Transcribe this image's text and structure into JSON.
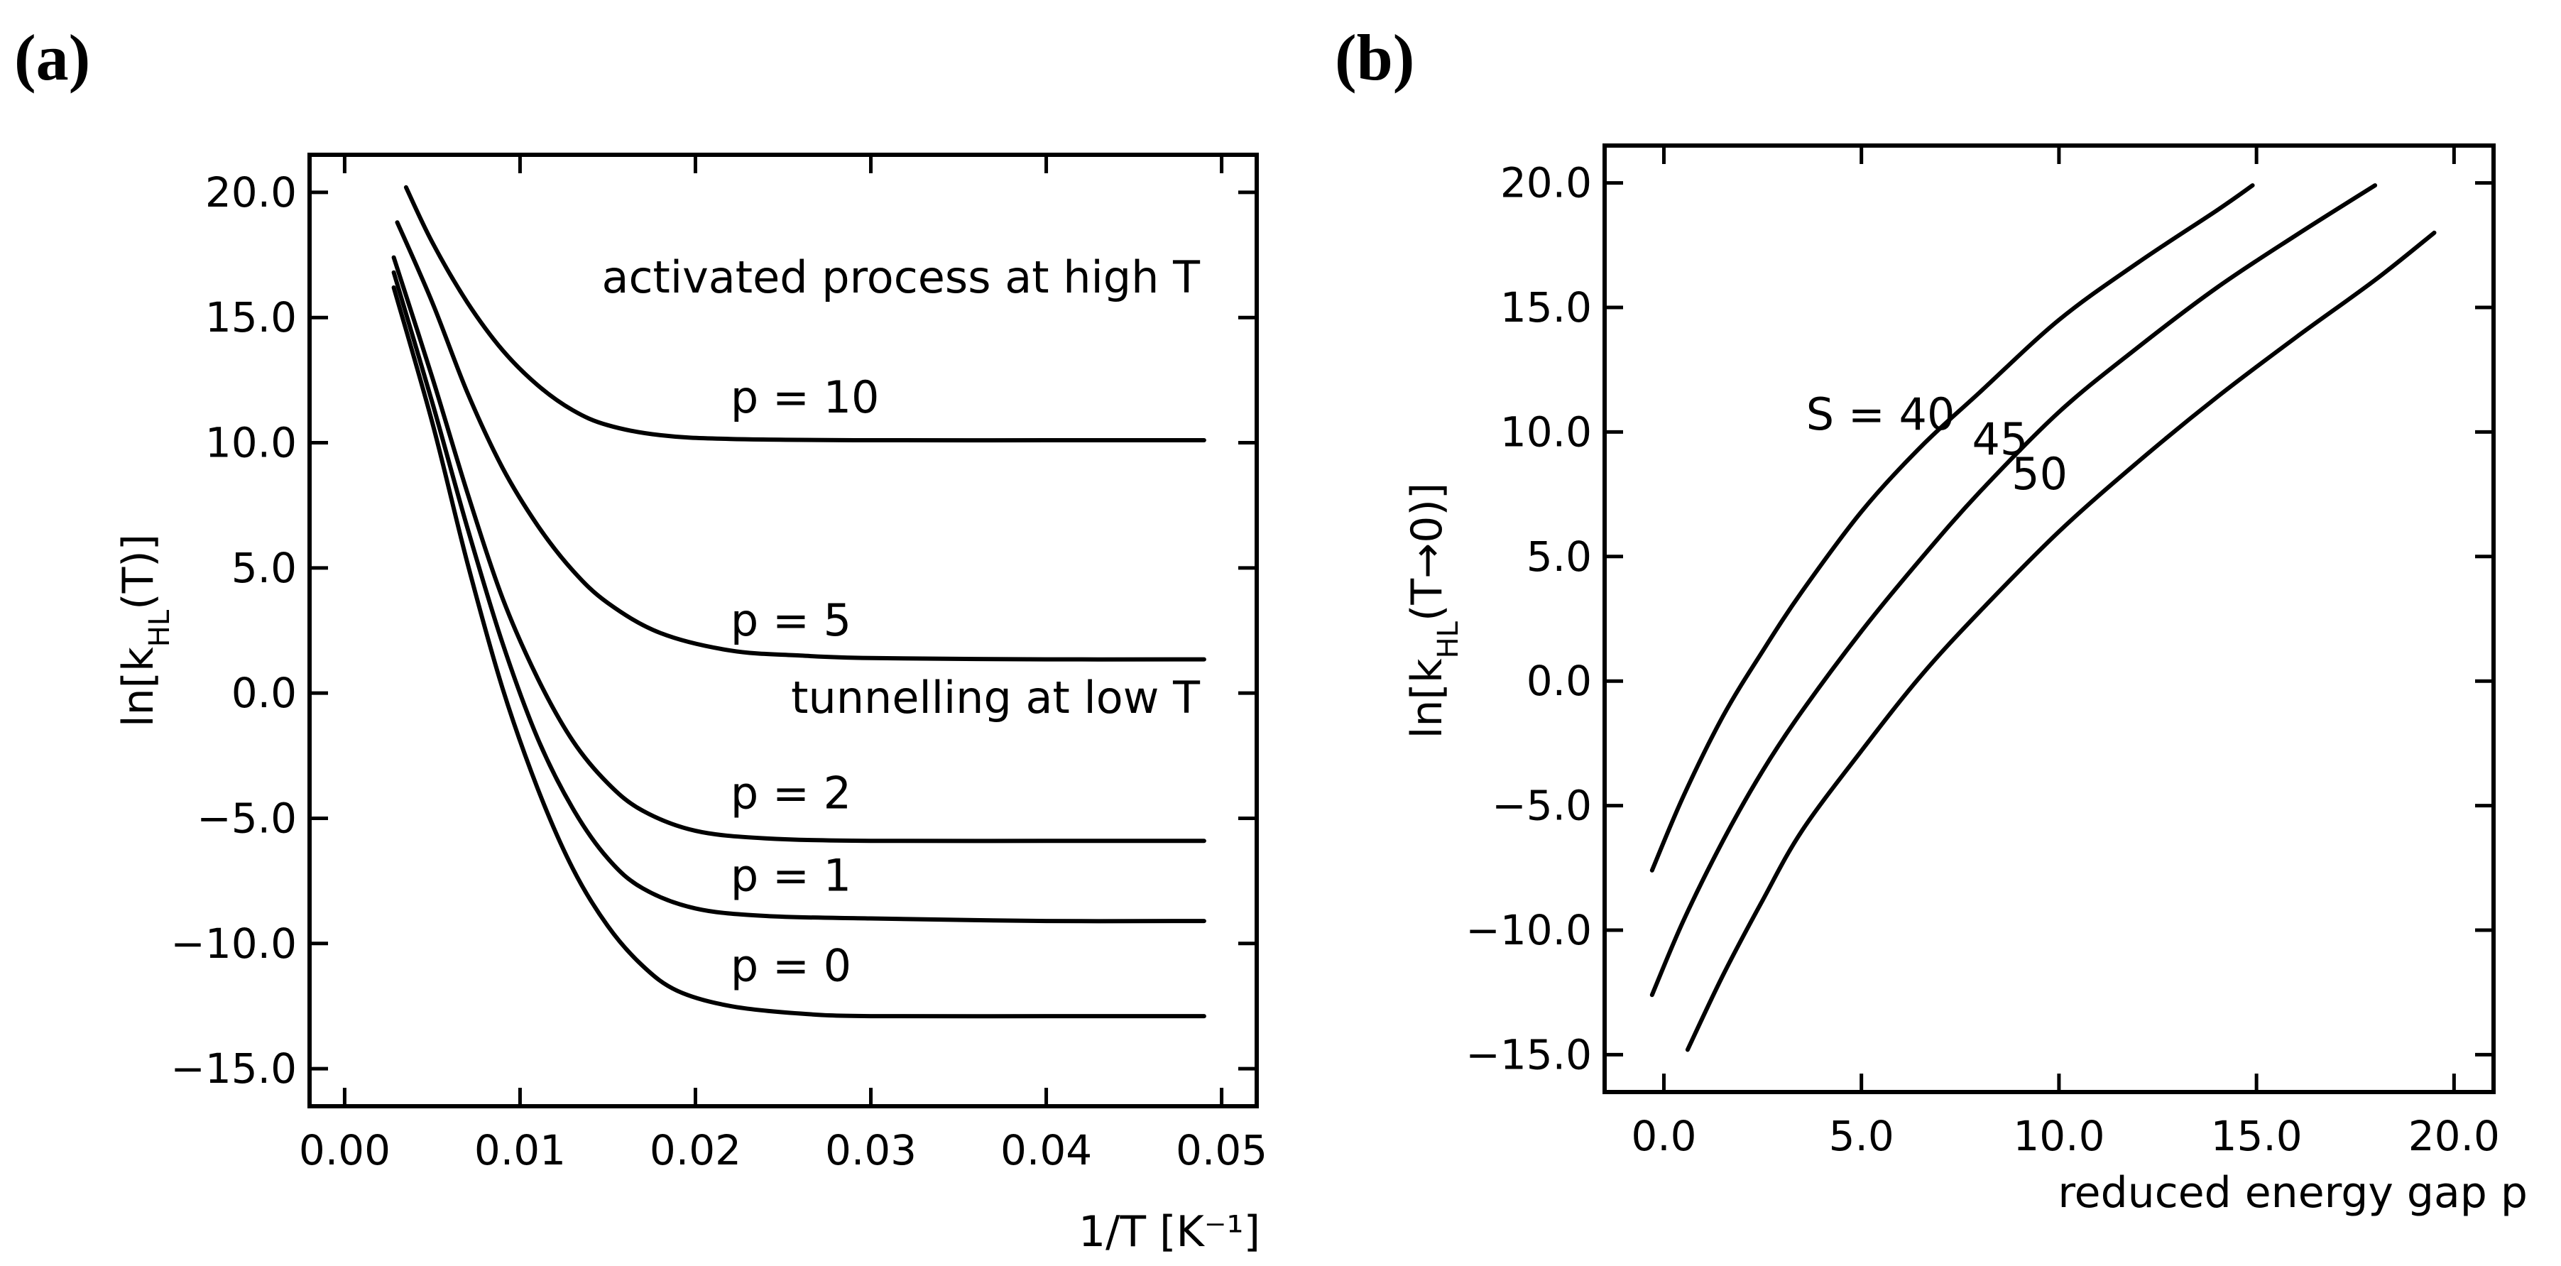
{
  "chart_data": [
    {
      "type": "line",
      "panel_label": "(a)",
      "xlabel": "1/T  [K⁻¹]",
      "ylabel": "ln[k_HL(T)]",
      "ylabel_main": "ln[k",
      "ylabel_sub": "HL",
      "ylabel_tail": "(T)]",
      "xlim": [
        -0.002,
        0.052
      ],
      "ylim": [
        -16.5,
        21.5
      ],
      "xticks": [
        0.0,
        0.01,
        0.02,
        0.03,
        0.04,
        0.05
      ],
      "xtick_labels": [
        "0.00",
        "0.01",
        "0.02",
        "0.03",
        "0.04",
        "0.05"
      ],
      "yticks": [
        -15,
        -10,
        -5,
        0,
        5,
        10,
        15,
        20
      ],
      "ytick_labels": [
        "−15.0",
        "−10.0",
        "−5.0",
        "0.0",
        "5.0",
        "10.0",
        "15.0",
        "20.0"
      ],
      "annotations": [
        "activated process at high T",
        "tunnelling at low T"
      ],
      "series": [
        {
          "name": "p = 10",
          "label": "p = 10",
          "label_at": [
            0.022,
            11.2
          ],
          "x": [
            0.0035,
            0.005,
            0.007,
            0.009,
            0.011,
            0.013,
            0.015,
            0.018,
            0.022,
            0.03,
            0.04,
            0.049
          ],
          "y": [
            20.2,
            18.0,
            15.6,
            13.7,
            12.3,
            11.3,
            10.7,
            10.3,
            10.15,
            10.1,
            10.1,
            10.1
          ]
        },
        {
          "name": "p = 5",
          "label": "p = 5",
          "label_at": [
            0.022,
            2.3
          ],
          "x": [
            0.003,
            0.005,
            0.007,
            0.009,
            0.011,
            0.013,
            0.015,
            0.018,
            0.022,
            0.026,
            0.03,
            0.04,
            0.049
          ],
          "y": [
            18.8,
            15.6,
            12.0,
            9.0,
            6.7,
            4.9,
            3.6,
            2.4,
            1.7,
            1.5,
            1.4,
            1.35,
            1.35
          ]
        },
        {
          "name": "p = 2",
          "label": "p = 2",
          "label_at": [
            0.022,
            -4.6
          ],
          "x": [
            0.0028,
            0.005,
            0.007,
            0.009,
            0.011,
            0.013,
            0.015,
            0.017,
            0.02,
            0.024,
            0.03,
            0.04,
            0.049
          ],
          "y": [
            17.4,
            12.6,
            8.0,
            3.8,
            0.6,
            -1.9,
            -3.6,
            -4.7,
            -5.5,
            -5.8,
            -5.9,
            -5.9,
            -5.9
          ]
        },
        {
          "name": "p = 1",
          "label": "p = 1",
          "label_at": [
            0.022,
            -7.9
          ],
          "x": [
            0.0028,
            0.005,
            0.007,
            0.009,
            0.011,
            0.013,
            0.015,
            0.017,
            0.02,
            0.024,
            0.03,
            0.04,
            0.049
          ],
          "y": [
            16.8,
            11.6,
            6.6,
            2.0,
            -1.8,
            -4.6,
            -6.6,
            -7.8,
            -8.6,
            -8.9,
            -9.0,
            -9.1,
            -9.1
          ]
        },
        {
          "name": "p = 0",
          "label": "p = 0",
          "label_at": [
            0.022,
            -11.5
          ],
          "x": [
            0.0028,
            0.005,
            0.007,
            0.009,
            0.011,
            0.013,
            0.015,
            0.017,
            0.019,
            0.022,
            0.026,
            0.03,
            0.04,
            0.049
          ],
          "y": [
            16.2,
            10.8,
            5.2,
            0.2,
            -3.8,
            -7.0,
            -9.3,
            -10.9,
            -11.9,
            -12.5,
            -12.8,
            -12.9,
            -12.9,
            -12.9
          ]
        }
      ]
    },
    {
      "type": "line",
      "panel_label": "(b)",
      "xlabel": "reduced energy gap p",
      "ylabel": "ln[k_HL(T→0)]",
      "ylabel_main": "ln[k",
      "ylabel_sub": "HL",
      "ylabel_tail": "(T→0)]",
      "xlim": [
        -1.5,
        21.0
      ],
      "ylim": [
        -16.5,
        21.5
      ],
      "xticks": [
        0.0,
        5.0,
        10.0,
        15.0,
        20.0
      ],
      "xtick_labels": [
        "0.0",
        "5.0",
        "10.0",
        "15.0",
        "20.0"
      ],
      "yticks": [
        -15,
        -10,
        -5,
        0,
        5,
        10,
        15,
        20
      ],
      "ytick_labels": [
        "−15.0",
        "−10.0",
        "−5.0",
        "0.0",
        "5.0",
        "10.0",
        "15.0",
        "20.0"
      ],
      "series": [
        {
          "name": "S = 40",
          "label": "S = 40",
          "label_at": [
            3.6,
            10.1
          ],
          "x": [
            -0.3,
            0.5,
            1.5,
            2.5,
            3.5,
            5.0,
            6.5,
            8.0,
            10.0,
            12.0,
            14.0,
            14.9
          ],
          "y": [
            -7.6,
            -4.6,
            -1.4,
            1.2,
            3.6,
            6.8,
            9.4,
            11.6,
            14.5,
            16.8,
            18.9,
            19.9
          ]
        },
        {
          "name": "S = 45",
          "label": "45",
          "label_at": [
            7.8,
            9.1
          ],
          "x": [
            -0.3,
            0.5,
            1.5,
            2.5,
            3.5,
            5.0,
            6.5,
            8.0,
            10.0,
            12.0,
            14.0,
            16.0,
            18.0
          ],
          "y": [
            -12.6,
            -9.6,
            -6.4,
            -3.6,
            -1.2,
            2.0,
            4.9,
            7.6,
            10.8,
            13.4,
            15.8,
            17.9,
            19.9
          ]
        },
        {
          "name": "S = 50",
          "label": "50",
          "label_at": [
            8.8,
            7.7
          ],
          "x": [
            0.6,
            1.5,
            2.5,
            3.5,
            5.0,
            6.5,
            8.0,
            10.0,
            12.0,
            14.0,
            16.0,
            18.0,
            19.5
          ],
          "y": [
            -14.8,
            -11.8,
            -8.8,
            -6.0,
            -2.8,
            0.2,
            2.8,
            6.0,
            8.8,
            11.4,
            13.8,
            16.1,
            18.0
          ]
        }
      ]
    }
  ]
}
